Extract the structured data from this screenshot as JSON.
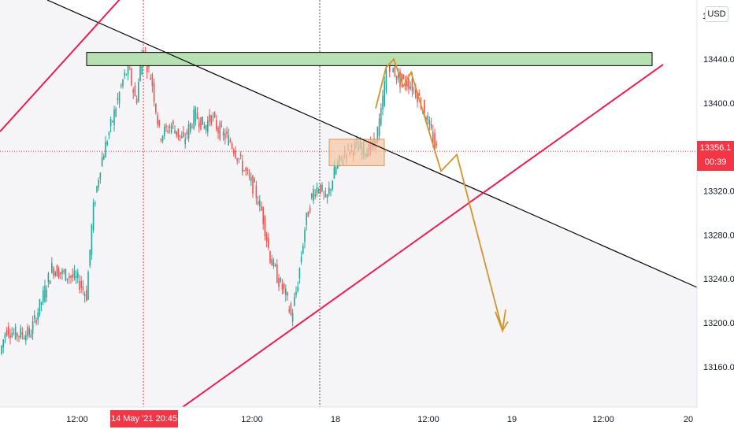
{
  "chart": {
    "price_scale_button": "USD",
    "partial_top_label": "1",
    "price_ticks": [
      {
        "price": 13440,
        "label": "13440.0"
      },
      {
        "price": 13400,
        "label": "13400.0"
      },
      {
        "price": 13320,
        "label": "13320.0"
      },
      {
        "price": 13280,
        "label": "13280.0"
      },
      {
        "price": 13240,
        "label": "13240.0"
      },
      {
        "price": 13200,
        "label": "13200.0"
      },
      {
        "price": 13160,
        "label": "13160.0"
      }
    ],
    "time_ticks": [
      "12:00",
      "12:00",
      "18",
      "12:00",
      "19",
      "12:00",
      "20"
    ],
    "crosshair_time_label": "14 May '21   20:45",
    "current_price": {
      "value": 13356.1,
      "label": "13356.1",
      "countdown": "00:39"
    },
    "colors": {
      "up_candle": "#26a69a",
      "down_candle": "#ef5350",
      "channel_line": "#e91e4f",
      "trend_line": "#000000",
      "resistance_zone": "#b7e1b3",
      "consolidation_box": "#f7c6a3",
      "projection_arrow": "#d4932b",
      "price_tag": "#f23645"
    }
  }
}
